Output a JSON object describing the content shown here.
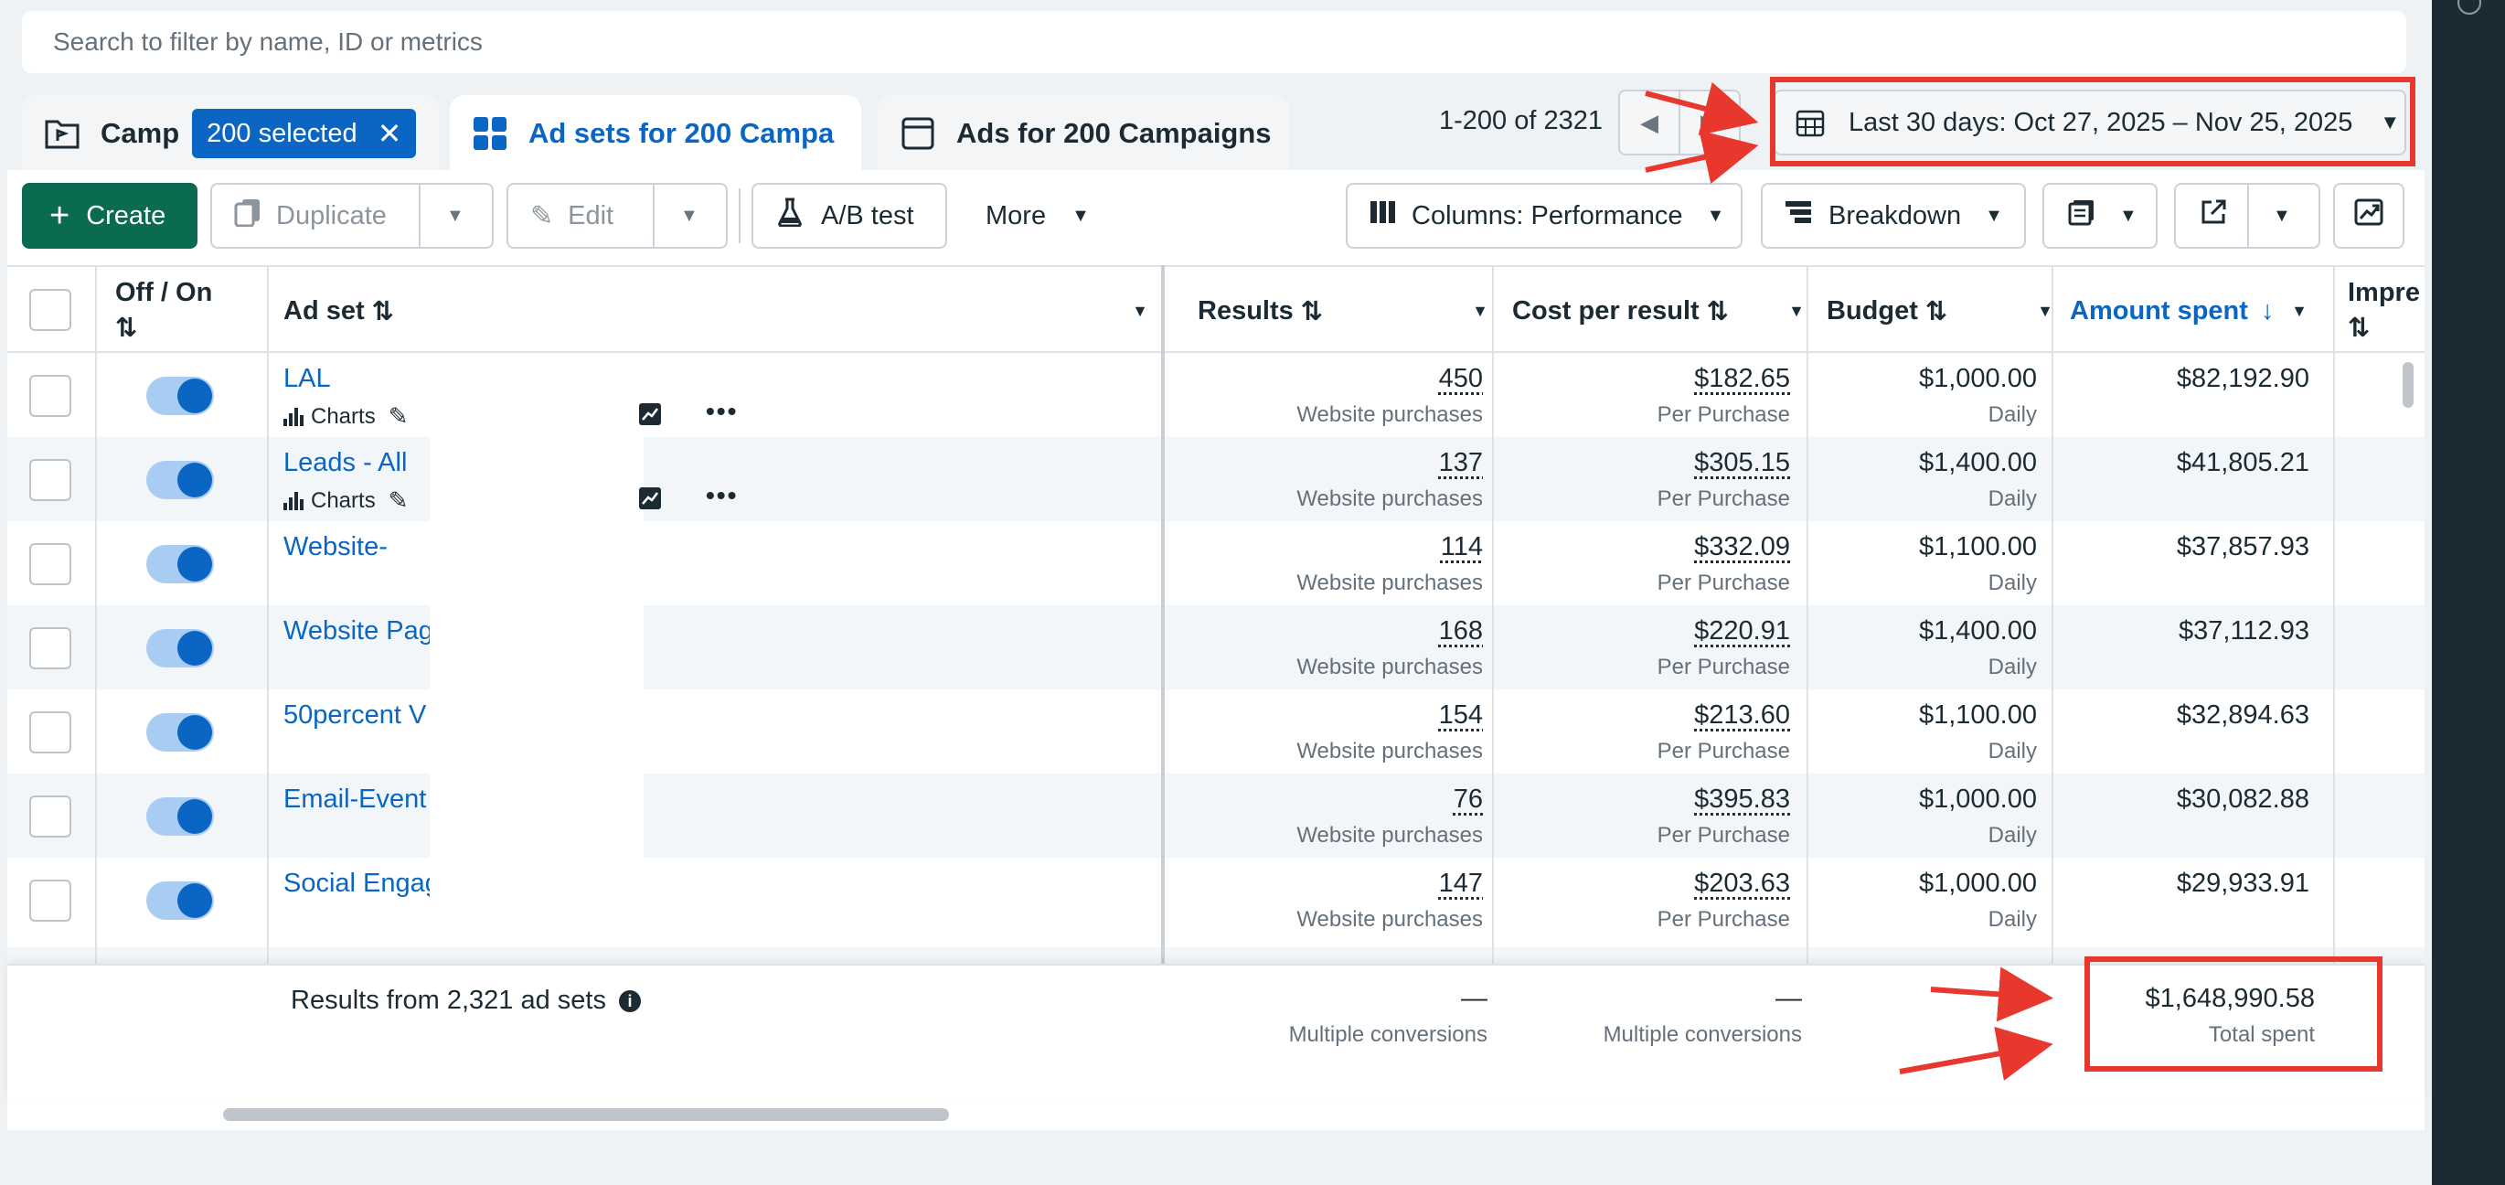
{
  "search": {
    "placeholder": "Search to filter by name, ID or metrics"
  },
  "tabs": {
    "campaigns": {
      "label": "Camp",
      "badge": "200 selected"
    },
    "adsets": {
      "label": "Ad sets for 200 Campa"
    },
    "ads": {
      "label": "Ads for 200 Campaigns"
    }
  },
  "pager": {
    "range": "1-200 of 2321"
  },
  "date_range": {
    "label": "Last 30 days: Oct 27, 2025 – Nov 25, 2025"
  },
  "toolbar": {
    "create": "Create",
    "duplicate": "Duplicate",
    "edit": "Edit",
    "ab_test": "A/B test",
    "more": "More",
    "columns": "Columns: Performance",
    "breakdown": "Breakdown"
  },
  "columns": {
    "offon": "Off / On",
    "adset": "Ad set",
    "results": "Results",
    "cost": "Cost per result",
    "budget": "Budget",
    "amount": "Amount spent",
    "impr": "Impre"
  },
  "subtools_label": "Charts",
  "rows": [
    {
      "name": "LAL",
      "results": "450",
      "results_sub": "Website purchases",
      "cost": "$182.65",
      "cost_sub": "Per Purchase",
      "budget": "$1,000.00",
      "budget_sub": "Daily",
      "amount": "$82,192.90"
    },
    {
      "name": "Leads - All",
      "results": "137",
      "results_sub": "Website purchases",
      "cost": "$305.15",
      "cost_sub": "Per Purchase",
      "budget": "$1,400.00",
      "budget_sub": "Daily",
      "amount": "$41,805.21"
    },
    {
      "name": "Website-",
      "results": "114",
      "results_sub": "Website purchases",
      "cost": "$332.09",
      "cost_sub": "Per Purchase",
      "budget": "$1,100.00",
      "budget_sub": "Daily",
      "amount": "$37,857.93"
    },
    {
      "name": "Website Pag",
      "results": "168",
      "results_sub": "Website purchases",
      "cost": "$220.91",
      "cost_sub": "Per Purchase",
      "budget": "$1,400.00",
      "budget_sub": "Daily",
      "amount": "$37,112.93"
    },
    {
      "name": "50percent V",
      "results": "154",
      "results_sub": "Website purchases",
      "cost": "$213.60",
      "cost_sub": "Per Purchase",
      "budget": "$1,100.00",
      "budget_sub": "Daily",
      "amount": "$32,894.63"
    },
    {
      "name": "Email-Event",
      "results": "76",
      "results_sub": "Website purchases",
      "cost": "$395.83",
      "cost_sub": "Per Purchase",
      "budget": "$1,000.00",
      "budget_sub": "Daily",
      "amount": "$30,082.88"
    },
    {
      "name": "Social Engag",
      "results": "147",
      "results_sub": "Website purchases",
      "cost": "$203.63",
      "cost_sub": "Per Purchase",
      "budget": "$1,000.00",
      "budget_sub": "Daily",
      "amount": "$29,933.91"
    }
  ],
  "footer": {
    "label": "Results from 2,321 ad sets",
    "results": "—",
    "results_sub": "Multiple conversions",
    "cost": "—",
    "cost_sub": "Multiple conversions",
    "amount": "$1,648,990.58",
    "amount_sub": "Total spent"
  },
  "colors": {
    "accent": "#0a66c2",
    "create": "#0b6b50",
    "annotation": "#e8372c"
  }
}
